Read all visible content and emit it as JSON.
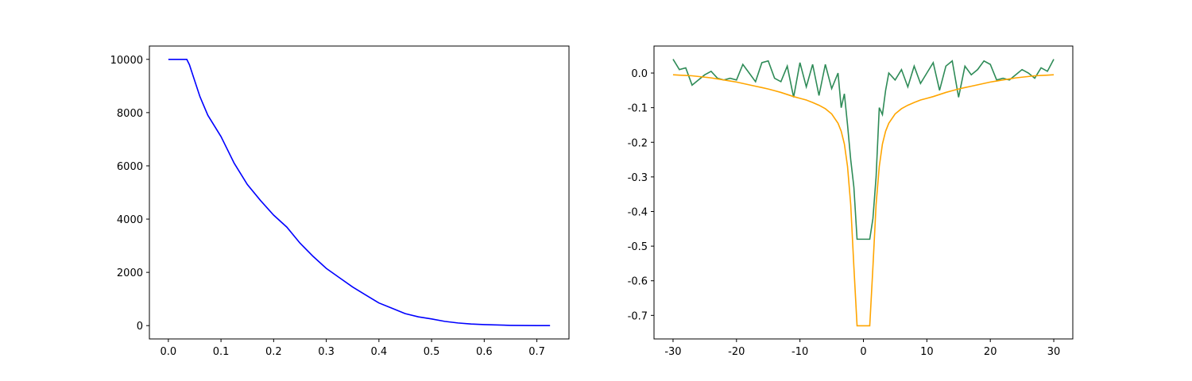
{
  "chart_data": [
    {
      "type": "line",
      "x": [
        0,
        0.02,
        0.035,
        0.04,
        0.05,
        0.06,
        0.075,
        0.1,
        0.125,
        0.15,
        0.175,
        0.2,
        0.225,
        0.25,
        0.275,
        0.3,
        0.325,
        0.35,
        0.375,
        0.4,
        0.425,
        0.45,
        0.475,
        0.5,
        0.525,
        0.55,
        0.575,
        0.6,
        0.65,
        0.7,
        0.725
      ],
      "series": [
        {
          "color": "#0000ff",
          "values": [
            10000,
            10000,
            10000,
            9800,
            9200,
            8600,
            7900,
            7100,
            6100,
            5300,
            4700,
            4150,
            3700,
            3100,
            2600,
            2150,
            1800,
            1450,
            1150,
            850,
            650,
            450,
            330,
            250,
            160,
            100,
            60,
            40,
            10,
            2,
            0
          ]
        }
      ],
      "xlim": [
        -0.036,
        0.761
      ],
      "xticks": [
        {
          "value": 0,
          "label": "0.0"
        },
        0.1,
        0.2,
        0.3,
        0.4,
        0.5,
        0.6,
        0.7
      ],
      "ylim": [
        -500,
        10500
      ],
      "yticks": [
        0,
        2000,
        4000,
        6000,
        8000,
        10000
      ]
    },
    {
      "type": "line",
      "x": [
        -30,
        -29,
        -28,
        -27,
        -26,
        -25,
        -24,
        -23,
        -22,
        -21,
        -20,
        -19,
        -18,
        -17,
        -16,
        -15,
        -14,
        -13,
        -12,
        -11,
        -10,
        -9,
        -8,
        -7,
        -6,
        -5,
        -4,
        -3.5,
        -3,
        -2.5,
        -2,
        -1.5,
        -1,
        1,
        1.5,
        2,
        2.5,
        3,
        3.5,
        4,
        5,
        6,
        7,
        8,
        9,
        10,
        11,
        12,
        13,
        14,
        15,
        16,
        17,
        18,
        19,
        20,
        21,
        22,
        23,
        24,
        25,
        26,
        27,
        28,
        29,
        30
      ],
      "series": [
        {
          "color": "#2e8b57",
          "values": [
            0.04,
            0.01,
            0.015,
            -0.035,
            -0.02,
            -0.005,
            0.005,
            -0.015,
            -0.02,
            -0.015,
            -0.02,
            0.025,
            0.0,
            -0.025,
            0.03,
            0.035,
            -0.015,
            -0.025,
            0.02,
            -0.07,
            0.03,
            -0.04,
            0.025,
            -0.065,
            0.025,
            -0.045,
            0.0,
            -0.1,
            -0.06,
            -0.15,
            -0.25,
            -0.33,
            -0.48,
            -0.48,
            -0.42,
            -0.3,
            -0.1,
            -0.12,
            -0.05,
            0.0,
            -0.02,
            0.01,
            -0.04,
            0.02,
            -0.03,
            0.0,
            0.03,
            -0.05,
            0.02,
            0.035,
            -0.07,
            0.02,
            -0.005,
            0.01,
            0.035,
            0.025,
            -0.02,
            -0.015,
            -0.02,
            -0.005,
            0.01,
            0.0,
            -0.015,
            0.015,
            0.005,
            0.04
          ]
        },
        {
          "color": "#ffa500",
          "values": [
            -0.005,
            -0.006,
            -0.007,
            -0.008,
            -0.01,
            -0.012,
            -0.014,
            -0.017,
            -0.02,
            -0.023,
            -0.026,
            -0.03,
            -0.034,
            -0.038,
            -0.042,
            -0.046,
            -0.051,
            -0.056,
            -0.062,
            -0.068,
            -0.073,
            -0.078,
            -0.085,
            -0.093,
            -0.103,
            -0.118,
            -0.145,
            -0.168,
            -0.205,
            -0.27,
            -0.38,
            -0.56,
            -0.73,
            -0.73,
            -0.56,
            -0.38,
            -0.27,
            -0.205,
            -0.168,
            -0.145,
            -0.118,
            -0.103,
            -0.093,
            -0.085,
            -0.078,
            -0.073,
            -0.068,
            -0.062,
            -0.056,
            -0.051,
            -0.046,
            -0.042,
            -0.038,
            -0.034,
            -0.03,
            -0.026,
            -0.023,
            -0.02,
            -0.017,
            -0.014,
            -0.012,
            -0.01,
            -0.008,
            -0.007,
            -0.006,
            -0.005
          ]
        }
      ],
      "xlim": [
        -33,
        33
      ],
      "xticks": [
        -30,
        -20,
        -10,
        0,
        10,
        20,
        30
      ],
      "ylim": [
        -0.768,
        0.078
      ],
      "yticks": [
        -0.7,
        -0.6,
        -0.5,
        -0.4,
        -0.3,
        -0.2,
        -0.1,
        {
          "value": 0,
          "label": "0.0"
        }
      ]
    }
  ]
}
